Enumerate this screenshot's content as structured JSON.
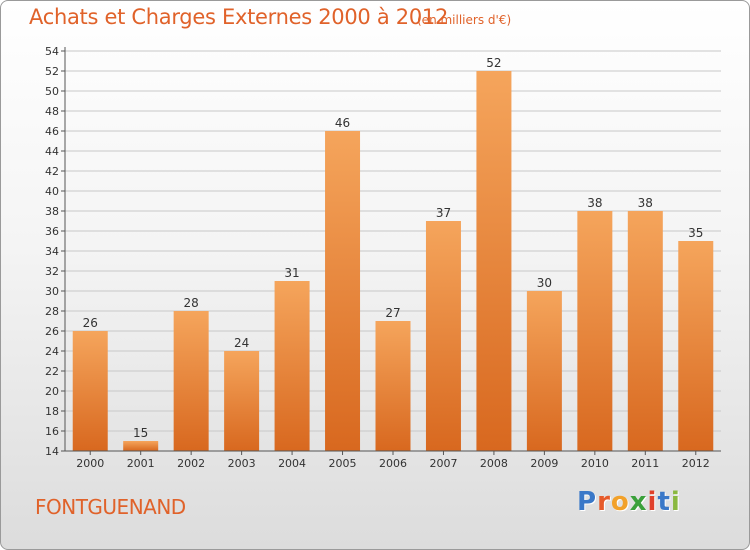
{
  "title": "Achats et Charges Externes 2000 à 2012",
  "unit_label": "(en milliers d'€)",
  "commune": "FONTGUENAND",
  "logo": {
    "text": "Proxiti",
    "letters": [
      "P",
      "r",
      "o",
      "x",
      "i",
      "t",
      "i"
    ],
    "colors": [
      "#3a78c8",
      "#e65a2a",
      "#f2a12a",
      "#3aa03a",
      "#e0402a",
      "#3a78c8",
      "#8ab840"
    ]
  },
  "colors": {
    "title": "#e0622a",
    "bar_light": "#f5a55c",
    "bar_dark": "#d8681f",
    "axis": "#555555",
    "grid": "#c8c8c8"
  },
  "chart_data": {
    "type": "bar",
    "title": "Achats et Charges Externes 2000 à 2012",
    "unit": "(en milliers d'€)",
    "xlabel": "",
    "ylabel": "",
    "categories": [
      "2000",
      "2001",
      "2002",
      "2003",
      "2004",
      "2005",
      "2006",
      "2007",
      "2008",
      "2009",
      "2010",
      "2011",
      "2012"
    ],
    "values": [
      26,
      15,
      28,
      24,
      31,
      46,
      27,
      37,
      52,
      30,
      38,
      38,
      35
    ],
    "ylim": [
      14,
      54
    ],
    "ytick_step": 2,
    "grid": "horizontal",
    "legend": "none"
  }
}
